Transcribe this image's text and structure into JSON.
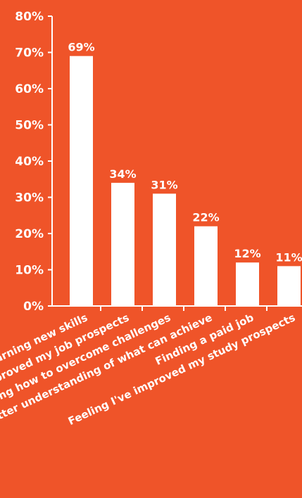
{
  "colors": {
    "background": "#EF5429",
    "bars": "#FFFFFF",
    "text": "#FFFFFF"
  },
  "chart_data": {
    "type": "bar",
    "categories": [
      "Learning new skills",
      "Improved my job prospects",
      "Knowing how to overcome challenges",
      "Better understanding of what can achieve",
      "Finding a paid job",
      "Feeling I've improved my study prospects"
    ],
    "values": [
      69,
      34,
      31,
      22,
      12,
      11
    ],
    "data_labels": [
      "69%",
      "34%",
      "31%",
      "22%",
      "12%",
      "11%"
    ],
    "ylim": [
      0,
      80
    ],
    "y_ticks": [
      0,
      10,
      20,
      30,
      40,
      50,
      60,
      70,
      80
    ],
    "y_tick_labels": [
      "0%",
      "10%",
      "20%",
      "30%",
      "40%",
      "50%",
      "60%",
      "70%",
      "80%"
    ],
    "title": "",
    "xlabel": "",
    "ylabel": "",
    "grid": false,
    "legend": "none"
  }
}
